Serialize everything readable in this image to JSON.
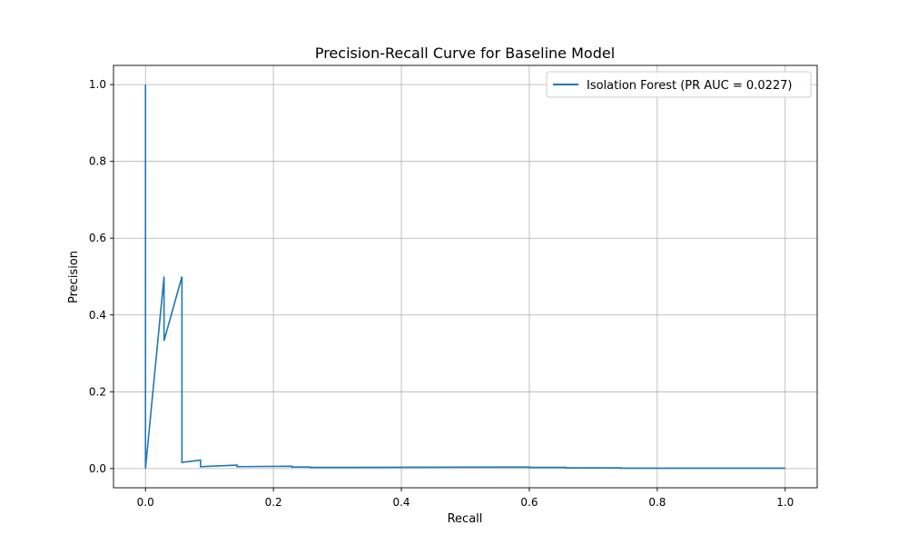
{
  "chart_data": {
    "type": "line",
    "title": "Precision-Recall Curve for Baseline Model",
    "xlabel": "Recall",
    "ylabel": "Precision",
    "xlim": [
      -0.05,
      1.05
    ],
    "ylim": [
      -0.05,
      1.05
    ],
    "xticks": [
      0.0,
      0.2,
      0.4,
      0.6,
      0.8,
      1.0
    ],
    "yticks": [
      0.0,
      0.2,
      0.4,
      0.6,
      0.8,
      1.0
    ],
    "xtick_labels": [
      "0.0",
      "0.2",
      "0.4",
      "0.6",
      "0.8",
      "1.0"
    ],
    "ytick_labels": [
      "0.0",
      "0.2",
      "0.4",
      "0.6",
      "0.8",
      "1.0"
    ],
    "grid": true,
    "legend": {
      "position": "top-right"
    },
    "series": [
      {
        "name": "Isolation Forest (PR AUC = 0.0227)",
        "color": "#1f77b4",
        "x": [
          0.0,
          0.0,
          0.0,
          0.029,
          0.029,
          0.057,
          0.057,
          0.086,
          0.086,
          0.143,
          0.143,
          0.229,
          0.229,
          0.257,
          0.257,
          0.6,
          0.6,
          0.657,
          0.657,
          0.743,
          0.743,
          1.0
        ],
        "y": [
          1.0,
          0.0,
          0.0,
          0.5,
          0.333,
          0.5,
          0.016,
          0.022,
          0.005,
          0.009,
          0.005,
          0.006,
          0.004,
          0.004,
          0.003,
          0.004,
          0.003,
          0.003,
          0.002,
          0.002,
          0.001,
          0.001
        ]
      }
    ]
  }
}
